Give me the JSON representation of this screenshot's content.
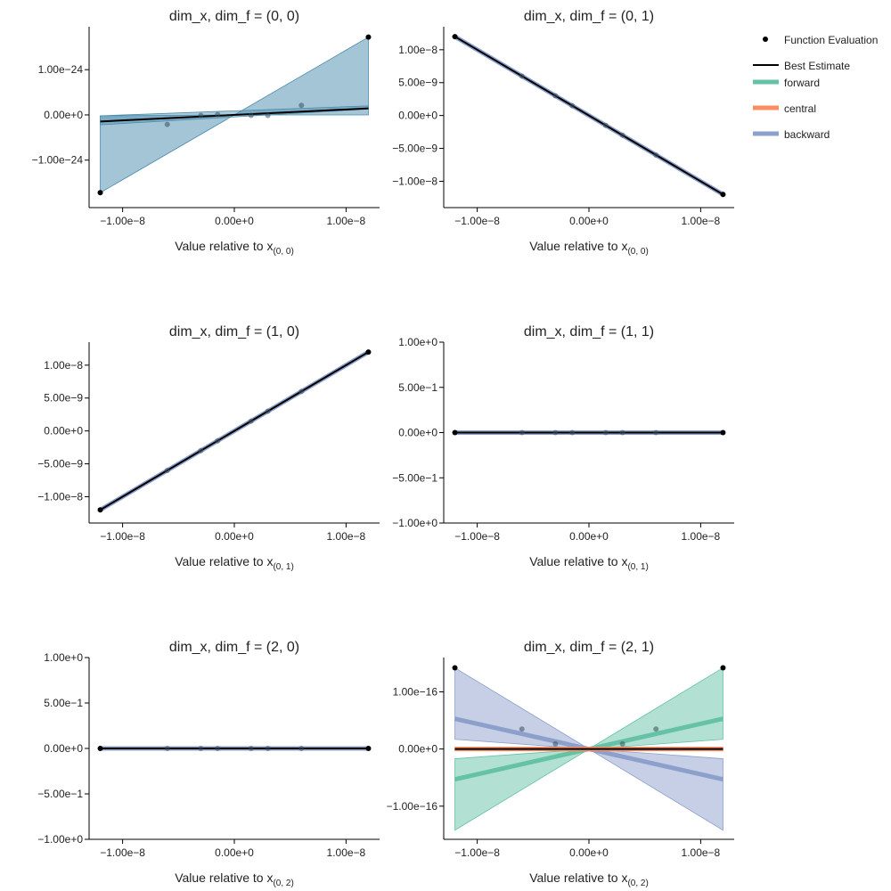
{
  "colors": {
    "forward": "#66c2a5",
    "central": "#fc8d62",
    "backward": "#8da0cb",
    "best": "#000000",
    "evaluation": "#000000",
    "band": "#4a8bad"
  },
  "legend": {
    "placement": "top-right",
    "items": [
      {
        "key": "evaluation",
        "label": "Function Evaluation"
      },
      {
        "key": "best",
        "label": "Best Estimate"
      },
      {
        "key": "forward",
        "label": "forward"
      },
      {
        "key": "central",
        "label": "central"
      },
      {
        "key": "backward",
        "label": "backward"
      }
    ]
  },
  "chart_data": [
    {
      "type": "line",
      "title": "dim_x, dim_f = (0, 0)",
      "xlabel_main": "Value relative to x",
      "xlabel_sub": "(0, 0)",
      "xlim": [
        -1.3e-08,
        1.3e-08
      ],
      "ylim": [
        -2.05e-24,
        1.95e-24
      ],
      "xticks": [
        {
          "v": -1e-08,
          "t": "−1.00e−8"
        },
        {
          "v": 0,
          "t": "0.00e+0"
        },
        {
          "v": 1e-08,
          "t": "1.00e−8"
        }
      ],
      "yticks": [
        {
          "v": -1e-24,
          "t": "−1.00e−24"
        },
        {
          "v": 0,
          "t": "0.00e+0"
        },
        {
          "v": 1e-24,
          "t": "1.00e−24"
        }
      ],
      "points": [
        {
          "x": -1.2e-08,
          "y": -1.72e-24
        },
        {
          "x": 1.2e-08,
          "y": 1.72e-24
        }
      ],
      "faint_points": [
        {
          "x": -6e-09,
          "y": -2.1e-25
        },
        {
          "x": -3e-09,
          "y": -1e-26
        },
        {
          "x": -1.5e-09,
          "y": 1e-26
        },
        {
          "x": 1.5e-09,
          "y": -1e-26
        },
        {
          "x": 3e-09,
          "y": -1e-26
        },
        {
          "x": 6e-09,
          "y": 2.1e-25
        }
      ],
      "bands": [
        {
          "key": "band",
          "x": [
            -1.2e-08,
            0,
            1.2e-08
          ],
          "lower": [
            -1.72e-24,
            0,
            0
          ],
          "upper": [
            -2e-26,
            0,
            1.72e-24
          ],
          "opacity": 0.5
        },
        {
          "key": "band",
          "x": [
            -1.2e-08,
            1.2e-08
          ],
          "lower": [
            -2.2e-25,
            1.3e-25
          ],
          "upper": [
            -2e-26,
            2e-25
          ],
          "opacity": 0.45
        }
      ],
      "lines": [
        {
          "key": "best",
          "x": [
            -1.2e-08,
            1.2e-08
          ],
          "y": [
            -1.45e-25,
            1.45e-25
          ],
          "width": 2
        }
      ]
    },
    {
      "type": "line",
      "title": "dim_x, dim_f = (0, 1)",
      "xlabel_main": "Value relative to x",
      "xlabel_sub": "(0, 0)",
      "xlim": [
        -1.3e-08,
        1.3e-08
      ],
      "ylim": [
        -1.4e-08,
        1.35e-08
      ],
      "xticks": [
        {
          "v": -1e-08,
          "t": "−1.00e−8"
        },
        {
          "v": 0,
          "t": "0.00e+0"
        },
        {
          "v": 1e-08,
          "t": "1.00e−8"
        }
      ],
      "yticks": [
        {
          "v": -1e-08,
          "t": "−1.00e−8"
        },
        {
          "v": -5e-09,
          "t": "−5.00e−9"
        },
        {
          "v": 0,
          "t": "0.00e+0"
        },
        {
          "v": 5e-09,
          "t": "5.00e−9"
        },
        {
          "v": 1e-08,
          "t": "1.00e−8"
        }
      ],
      "points": [
        {
          "x": -1.2e-08,
          "y": 1.2e-08
        },
        {
          "x": 1.2e-08,
          "y": -1.2e-08
        }
      ],
      "faint_points": [
        {
          "x": -6e-09,
          "y": 6e-09
        },
        {
          "x": -3e-09,
          "y": 3e-09
        },
        {
          "x": -1.5e-09,
          "y": 1.5e-09
        },
        {
          "x": 1.5e-09,
          "y": -1.5e-09
        },
        {
          "x": 3e-09,
          "y": -3e-09
        },
        {
          "x": 6e-09,
          "y": -6e-09
        }
      ],
      "bands": [],
      "lines": [
        {
          "key": "backward",
          "x": [
            -1.2e-08,
            1.2e-08
          ],
          "y": [
            1.2e-08,
            -1.2e-08
          ],
          "width": 5
        },
        {
          "key": "best",
          "x": [
            -1.2e-08,
            1.2e-08
          ],
          "y": [
            1.2e-08,
            -1.2e-08
          ],
          "width": 2
        }
      ]
    },
    {
      "type": "line",
      "title": "dim_x, dim_f = (1, 0)",
      "xlabel_main": "Value relative to x",
      "xlabel_sub": "(0, 1)",
      "xlim": [
        -1.3e-08,
        1.3e-08
      ],
      "ylim": [
        -1.4e-08,
        1.35e-08
      ],
      "xticks": [
        {
          "v": -1e-08,
          "t": "−1.00e−8"
        },
        {
          "v": 0,
          "t": "0.00e+0"
        },
        {
          "v": 1e-08,
          "t": "1.00e−8"
        }
      ],
      "yticks": [
        {
          "v": -1e-08,
          "t": "−1.00e−8"
        },
        {
          "v": -5e-09,
          "t": "−5.00e−9"
        },
        {
          "v": 0,
          "t": "0.00e+0"
        },
        {
          "v": 5e-09,
          "t": "5.00e−9"
        },
        {
          "v": 1e-08,
          "t": "1.00e−8"
        }
      ],
      "points": [
        {
          "x": -1.2e-08,
          "y": -1.2e-08
        },
        {
          "x": 1.2e-08,
          "y": 1.2e-08
        }
      ],
      "faint_points": [
        {
          "x": -6e-09,
          "y": -6e-09
        },
        {
          "x": -3e-09,
          "y": -3e-09
        },
        {
          "x": -1.5e-09,
          "y": -1.5e-09
        },
        {
          "x": 1.5e-09,
          "y": 1.5e-09
        },
        {
          "x": 3e-09,
          "y": 3e-09
        },
        {
          "x": 6e-09,
          "y": 6e-09
        }
      ],
      "bands": [],
      "lines": [
        {
          "key": "backward",
          "x": [
            -1.2e-08,
            1.2e-08
          ],
          "y": [
            -1.2e-08,
            1.2e-08
          ],
          "width": 5
        },
        {
          "key": "best",
          "x": [
            -1.2e-08,
            1.2e-08
          ],
          "y": [
            -1.2e-08,
            1.2e-08
          ],
          "width": 2
        }
      ]
    },
    {
      "type": "line",
      "title": "dim_x, dim_f = (1, 1)",
      "xlabel_main": "Value relative to x",
      "xlabel_sub": "(0, 1)",
      "xlim": [
        -1.3e-08,
        1.3e-08
      ],
      "ylim": [
        -1,
        1
      ],
      "xticks": [
        {
          "v": -1e-08,
          "t": "−1.00e−8"
        },
        {
          "v": 0,
          "t": "0.00e+0"
        },
        {
          "v": 1e-08,
          "t": "1.00e−8"
        }
      ],
      "yticks": [
        {
          "v": -1,
          "t": "−1.00e+0"
        },
        {
          "v": -0.5,
          "t": "−5.00e−1"
        },
        {
          "v": 0,
          "t": "0.00e+0"
        },
        {
          "v": 0.5,
          "t": "5.00e−1"
        },
        {
          "v": 1,
          "t": "1.00e+0"
        }
      ],
      "points": [
        {
          "x": -1.2e-08,
          "y": 0
        },
        {
          "x": 1.2e-08,
          "y": 0
        }
      ],
      "faint_points": [
        {
          "x": -6e-09,
          "y": 0
        },
        {
          "x": -3e-09,
          "y": 0
        },
        {
          "x": -1.5e-09,
          "y": 0
        },
        {
          "x": 1.5e-09,
          "y": 0
        },
        {
          "x": 3e-09,
          "y": 0
        },
        {
          "x": 6e-09,
          "y": 0
        }
      ],
      "bands": [],
      "lines": [
        {
          "key": "backward",
          "x": [
            -1.2e-08,
            1.2e-08
          ],
          "y": [
            0,
            0
          ],
          "width": 5
        },
        {
          "key": "best",
          "x": [
            -1.2e-08,
            1.2e-08
          ],
          "y": [
            0,
            0
          ],
          "width": 2
        }
      ]
    },
    {
      "type": "line",
      "title": "dim_x, dim_f = (2, 0)",
      "xlabel_main": "Value relative to x",
      "xlabel_sub": "(0, 2)",
      "xlim": [
        -1.3e-08,
        1.3e-08
      ],
      "ylim": [
        -1,
        1
      ],
      "xticks": [
        {
          "v": -1e-08,
          "t": "−1.00e−8"
        },
        {
          "v": 0,
          "t": "0.00e+0"
        },
        {
          "v": 1e-08,
          "t": "1.00e−8"
        }
      ],
      "yticks": [
        {
          "v": -1,
          "t": "−1.00e+0"
        },
        {
          "v": -0.5,
          "t": "−5.00e−1"
        },
        {
          "v": 0,
          "t": "0.00e+0"
        },
        {
          "v": 0.5,
          "t": "5.00e−1"
        },
        {
          "v": 1,
          "t": "1.00e+0"
        }
      ],
      "points": [
        {
          "x": -1.2e-08,
          "y": 0
        },
        {
          "x": 1.2e-08,
          "y": 0
        }
      ],
      "faint_points": [
        {
          "x": -6e-09,
          "y": 0
        },
        {
          "x": -3e-09,
          "y": 0
        },
        {
          "x": -1.5e-09,
          "y": 0
        },
        {
          "x": 1.5e-09,
          "y": 0
        },
        {
          "x": 3e-09,
          "y": 0
        },
        {
          "x": 6e-09,
          "y": 0
        }
      ],
      "bands": [],
      "lines": [
        {
          "key": "backward",
          "x": [
            -1.2e-08,
            1.2e-08
          ],
          "y": [
            0,
            0
          ],
          "width": 5
        },
        {
          "key": "best",
          "x": [
            -1.2e-08,
            1.2e-08
          ],
          "y": [
            0,
            0
          ],
          "width": 2
        }
      ]
    },
    {
      "type": "line",
      "title": "dim_x, dim_f = (2, 1)",
      "xlabel_main": "Value relative to x",
      "xlabel_sub": "(0, 2)",
      "xlim": [
        -1.3e-08,
        1.3e-08
      ],
      "ylim": [
        -1.58e-16,
        1.6e-16
      ],
      "xticks": [
        {
          "v": -1e-08,
          "t": "−1.00e−8"
        },
        {
          "v": 0,
          "t": "0.00e+0"
        },
        {
          "v": 1e-08,
          "t": "1.00e−8"
        }
      ],
      "yticks": [
        {
          "v": -1e-16,
          "t": "−1.00e−16"
        },
        {
          "v": 0,
          "t": "0.00e+0"
        },
        {
          "v": 1e-16,
          "t": "1.00e−16"
        }
      ],
      "points": [
        {
          "x": -1.2e-08,
          "y": 1.42e-16
        },
        {
          "x": 1.2e-08,
          "y": 1.42e-16
        }
      ],
      "faint_points": [
        {
          "x": -6e-09,
          "y": 3.5e-17
        },
        {
          "x": -3e-09,
          "y": 9e-18
        },
        {
          "x": 3e-09,
          "y": 9e-18
        },
        {
          "x": 6e-09,
          "y": 3.5e-17
        }
      ],
      "bands": [
        {
          "key": "forward",
          "x": [
            -1.2e-08,
            0,
            1.2e-08
          ],
          "lower": [
            -1.42e-16,
            0,
            1.7e-17
          ],
          "upper": [
            -1.7e-17,
            0,
            1.42e-16
          ],
          "opacity": 0.5
        },
        {
          "key": "backward",
          "x": [
            -1.2e-08,
            0,
            1.2e-08
          ],
          "lower": [
            1.7e-17,
            0,
            -1.42e-16
          ],
          "upper": [
            1.42e-16,
            0,
            -1.7e-17
          ],
          "opacity": 0.5
        },
        {
          "key": "central",
          "x": [
            -1.2e-08,
            1.2e-08
          ],
          "lower": [
            -3e-18,
            -3e-18
          ],
          "upper": [
            3e-18,
            3e-18
          ],
          "opacity": 0.6
        }
      ],
      "lines": [
        {
          "key": "forward",
          "x": [
            -1.2e-08,
            1.2e-08
          ],
          "y": [
            -5.3e-17,
            5.3e-17
          ],
          "width": 5
        },
        {
          "key": "backward",
          "x": [
            -1.2e-08,
            1.2e-08
          ],
          "y": [
            5.3e-17,
            -5.3e-17
          ],
          "width": 5
        },
        {
          "key": "central",
          "x": [
            -1.2e-08,
            1.2e-08
          ],
          "y": [
            0,
            0
          ],
          "width": 5
        },
        {
          "key": "best",
          "x": [
            -1.2e-08,
            1.2e-08
          ],
          "y": [
            0,
            0
          ],
          "width": 2
        }
      ]
    }
  ]
}
